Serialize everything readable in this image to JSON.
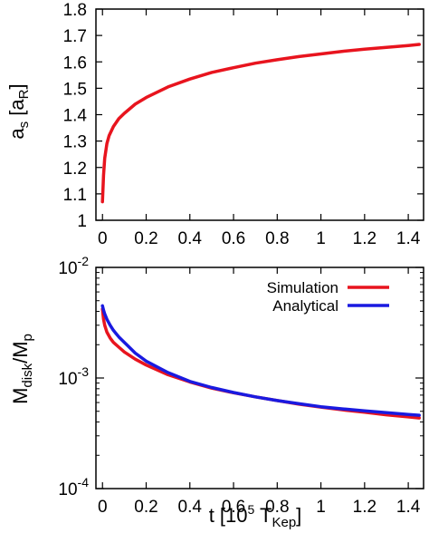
{
  "chart_data": [
    {
      "type": "line",
      "title": "",
      "xlabel": "",
      "ylabel": {
        "base": "a",
        "sub": "s",
        "unit_open": " [a",
        "unit_sub": "R",
        "unit_close": "]"
      },
      "xlim": [
        -0.03,
        1.47
      ],
      "ylim": [
        1.0,
        1.8
      ],
      "x_ticks": [
        0,
        0.2,
        0.4,
        0.6,
        0.8,
        1,
        1.2,
        1.4
      ],
      "x_tick_labels": [
        "0",
        "0.2",
        "0.4",
        "0.6",
        "0.8",
        "1",
        "1.2",
        "1.4"
      ],
      "y_ticks": [
        1.0,
        1.1,
        1.2,
        1.3,
        1.4,
        1.5,
        1.6,
        1.7,
        1.8
      ],
      "y_tick_labels": [
        "1",
        "1.1",
        "1.2",
        "1.3",
        "1.4",
        "1.5",
        "1.6",
        "1.7",
        "1.8"
      ],
      "grid": false,
      "legend": "none",
      "colors": {
        "curve": "#e8141e"
      },
      "series": [
        {
          "x": [
            0,
            0.005,
            0.01,
            0.02,
            0.03,
            0.05,
            0.075,
            0.1,
            0.15,
            0.2,
            0.3,
            0.4,
            0.5,
            0.6,
            0.7,
            0.8,
            0.9,
            1.0,
            1.1,
            1.2,
            1.3,
            1.4,
            1.45
          ],
          "y": [
            1.07,
            1.17,
            1.235,
            1.29,
            1.32,
            1.355,
            1.385,
            1.405,
            1.44,
            1.465,
            1.505,
            1.535,
            1.56,
            1.578,
            1.595,
            1.608,
            1.62,
            1.63,
            1.64,
            1.648,
            1.655,
            1.662,
            1.666
          ]
        }
      ]
    },
    {
      "type": "line",
      "title": "",
      "xlabel": {
        "text_open": "t [10",
        "sup": "5",
        "mid": " T",
        "sub": "Kep",
        "text_close": "]"
      },
      "ylabel": {
        "base": "M",
        "sub1": "disk",
        "mid": "/M",
        "sub2": "p"
      },
      "xlim": [
        -0.03,
        1.47
      ],
      "ylim": [
        0.0001,
        0.01
      ],
      "y_scale": "log",
      "x_ticks": [
        0,
        0.2,
        0.4,
        0.6,
        0.8,
        1,
        1.2,
        1.4
      ],
      "x_tick_labels": [
        "0",
        "0.2",
        "0.4",
        "0.6",
        "0.8",
        "1",
        "1.2",
        "1.4"
      ],
      "y_ticks": [
        {
          "value": 0.01,
          "base": "10",
          "exp": "-2"
        },
        {
          "value": 0.001,
          "base": "10",
          "exp": "-3"
        },
        {
          "value": 0.0001,
          "base": "10",
          "exp": "-4"
        }
      ],
      "grid": false,
      "legend": "top-right",
      "series": [
        {
          "name": "Simulation",
          "color": "#e8141e",
          "x": [
            0,
            0.005,
            0.01,
            0.02,
            0.035,
            0.05,
            0.075,
            0.1,
            0.15,
            0.2,
            0.3,
            0.4,
            0.5,
            0.6,
            0.7,
            0.8,
            0.9,
            1.0,
            1.1,
            1.2,
            1.3,
            1.4,
            1.45
          ],
          "y": [
            0.0042,
            0.0034,
            0.003,
            0.0026,
            0.0023,
            0.0021,
            0.0019,
            0.00172,
            0.00148,
            0.00131,
            0.00107,
            0.00092,
            0.00081,
            0.000735,
            0.000675,
            0.000625,
            0.00058,
            0.000545,
            0.000515,
            0.00049,
            0.000465,
            0.000445,
            0.000435
          ]
        },
        {
          "name": "Analytical",
          "color": "#1a1ae0",
          "x": [
            0,
            0.005,
            0.01,
            0.02,
            0.035,
            0.05,
            0.075,
            0.1,
            0.15,
            0.2,
            0.3,
            0.4,
            0.5,
            0.6,
            0.7,
            0.8,
            0.9,
            1.0,
            1.1,
            1.2,
            1.3,
            1.4,
            1.45
          ],
          "y": [
            0.0045,
            0.0041,
            0.0038,
            0.0034,
            0.003,
            0.0027,
            0.00235,
            0.0021,
            0.00168,
            0.00142,
            0.00112,
            0.00093,
            0.00082,
            0.00074,
            0.000675,
            0.000625,
            0.000585,
            0.00055,
            0.000525,
            0.000505,
            0.000485,
            0.000468,
            0.00046
          ]
        }
      ]
    }
  ]
}
